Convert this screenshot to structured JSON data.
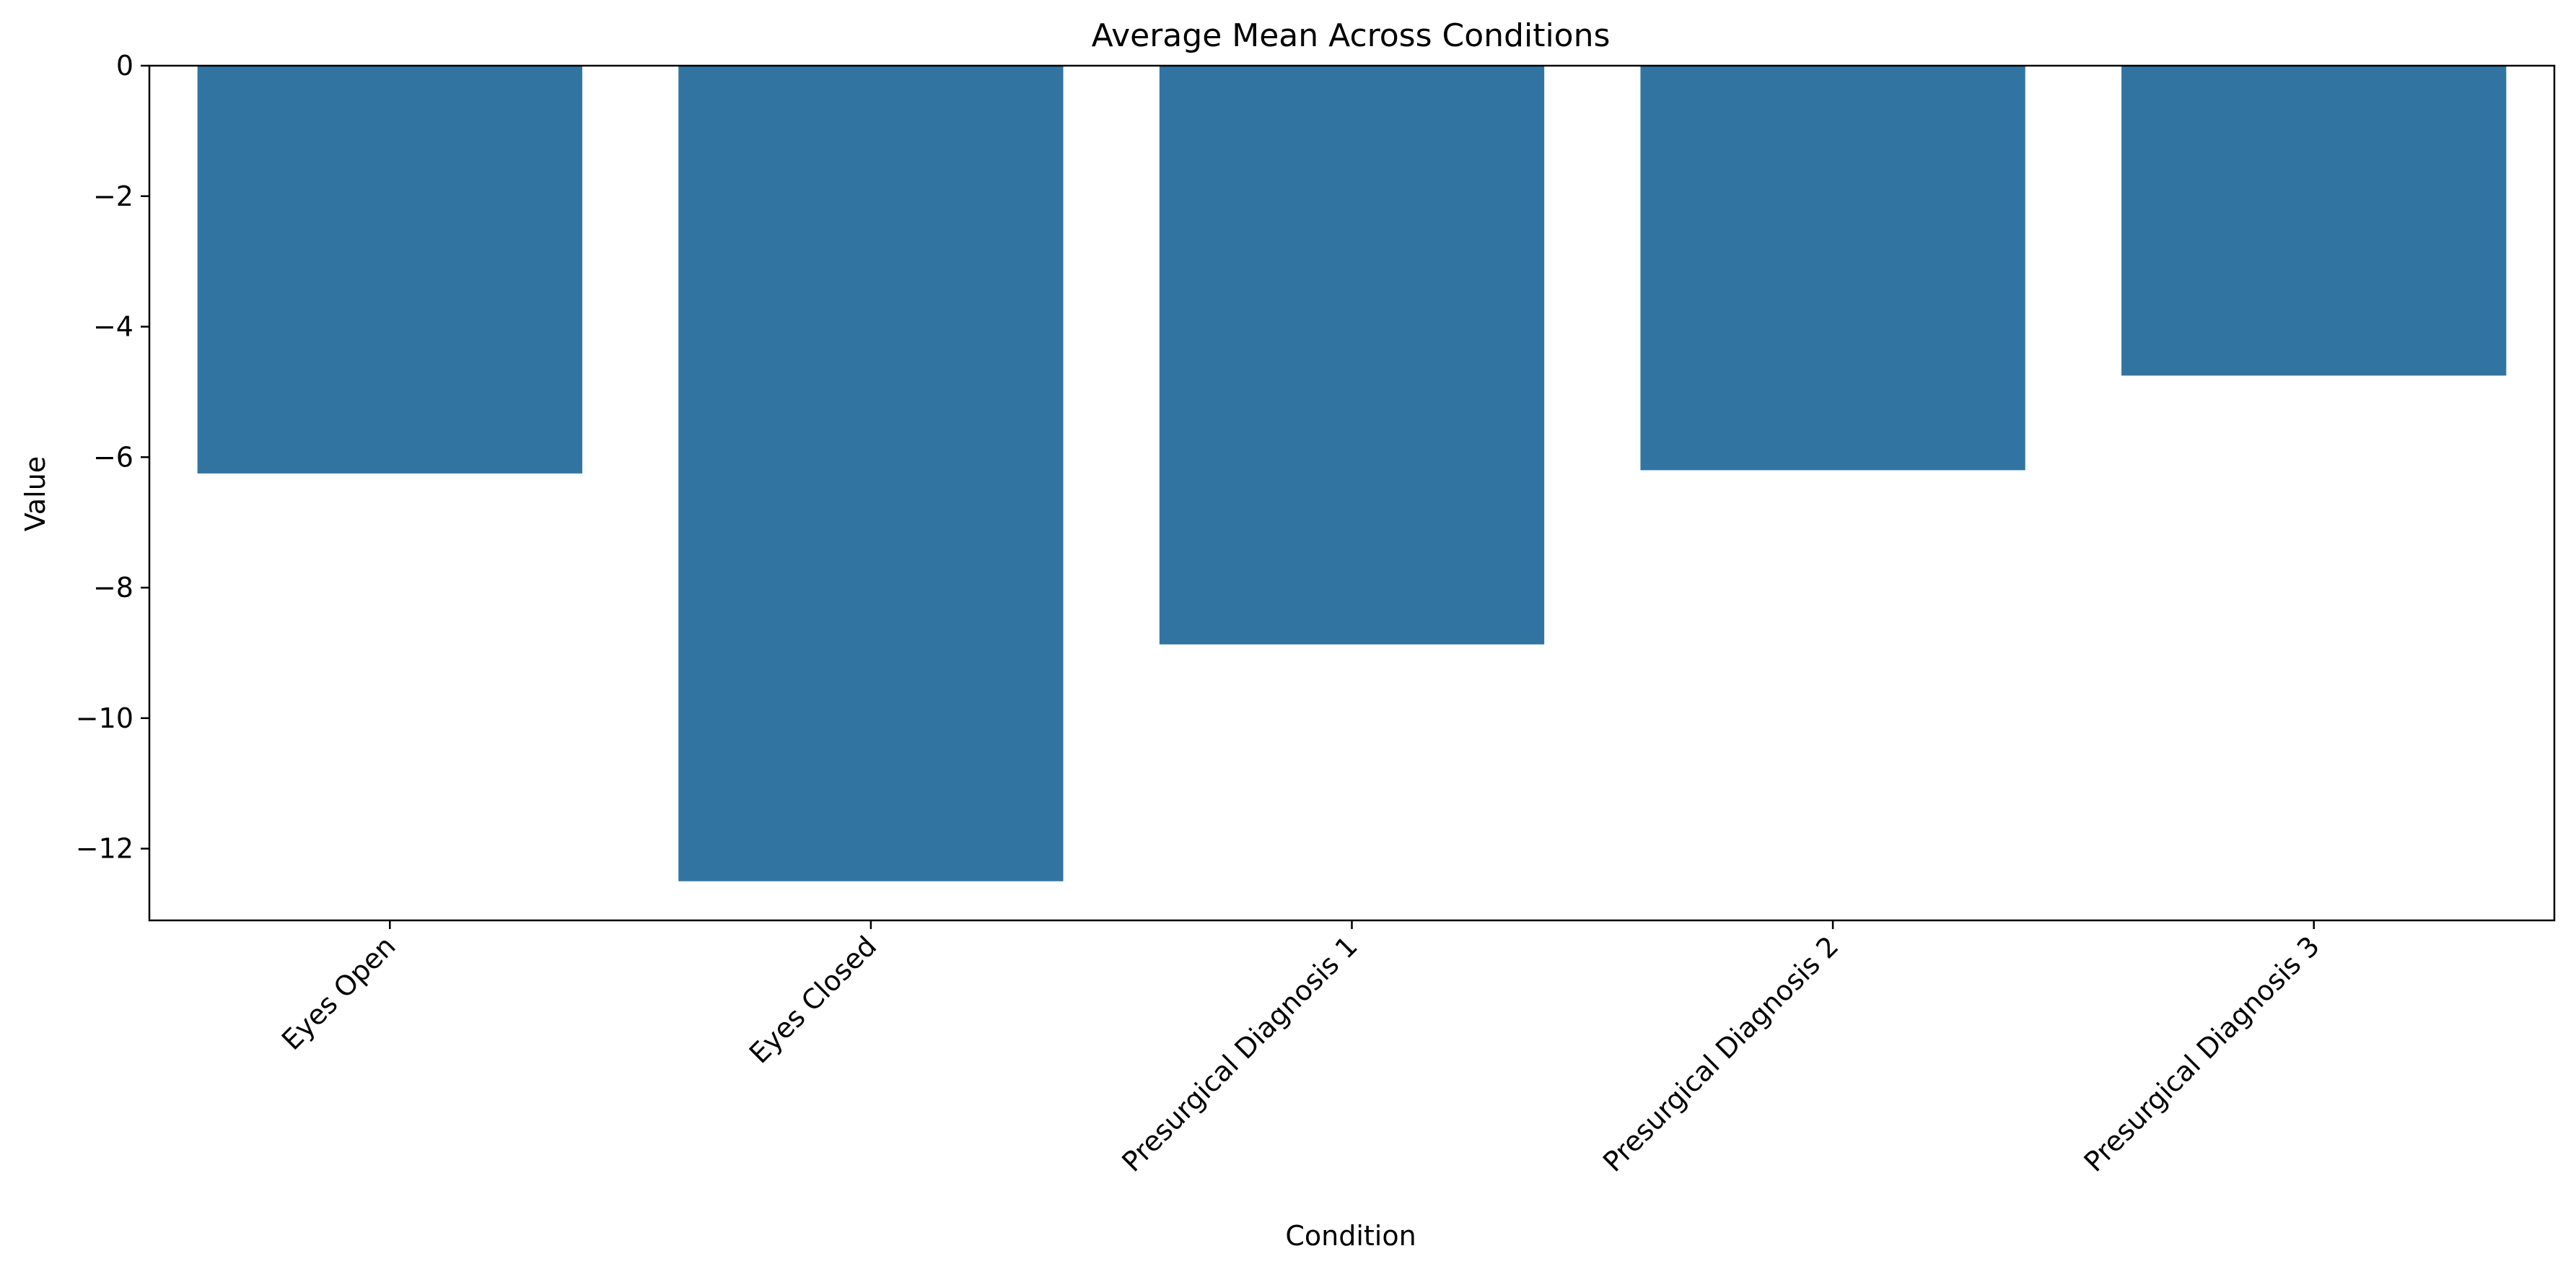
{
  "chart_data": {
    "type": "bar",
    "title": "Average Mean Across Conditions",
    "xlabel": "Condition",
    "ylabel": "Value",
    "categories": [
      "Eyes Open",
      "Eyes Closed",
      "Presurgical Diagnosis 1",
      "Presurgical Diagnosis 2",
      "Presurgical Diagnosis 3"
    ],
    "values": [
      -6.25,
      -12.5,
      -8.87,
      -6.2,
      -4.75
    ],
    "ylim": [
      -13.1,
      0
    ],
    "yticks": [
      0,
      -2,
      -4,
      -6,
      -8,
      -10,
      -12
    ],
    "ytick_labels": [
      "0",
      "−2",
      "−4",
      "−6",
      "−8",
      "−10",
      "−12"
    ],
    "grid": false,
    "legend": "none",
    "bar_color": "#3274a1"
  }
}
